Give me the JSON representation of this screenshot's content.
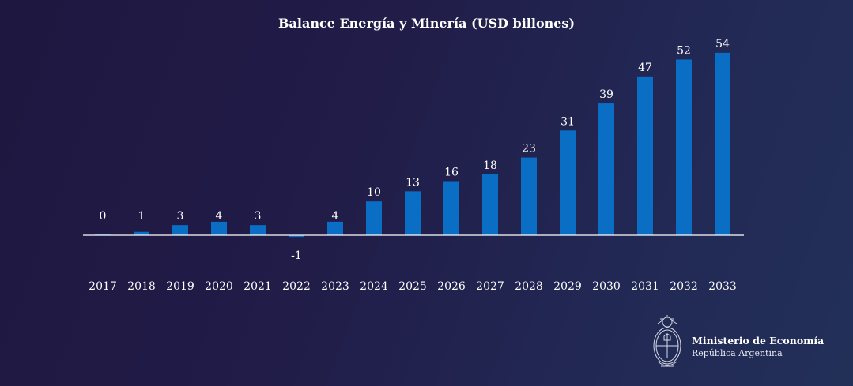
{
  "chart_data": {
    "type": "bar",
    "title": "Balance Energía y Minería (USD billones)",
    "xlabel": "",
    "ylabel": "",
    "categories": [
      "2017",
      "2018",
      "2019",
      "2020",
      "2021",
      "2022",
      "2023",
      "2024",
      "2025",
      "2026",
      "2027",
      "2028",
      "2029",
      "2030",
      "2031",
      "2032",
      "2033"
    ],
    "values": [
      0.3,
      1,
      3,
      4,
      3,
      -0.5,
      4,
      10,
      13,
      16,
      18,
      23,
      31,
      39,
      47,
      52,
      54
    ],
    "labels": [
      "0",
      "1",
      "3",
      "4",
      "3",
      "-1",
      "4",
      "10",
      "13",
      "16",
      "18",
      "23",
      "31",
      "39",
      "47",
      "52",
      "54"
    ],
    "ylim": [
      -1,
      55
    ],
    "grid": false,
    "legend": "none",
    "bar_color": "#0a6fc4",
    "axis_color": "#ffffff"
  },
  "footer": {
    "org_name": "Ministerio de Economía",
    "org_sub": "República Argentina",
    "logo_icon": "argentina-coat-of-arms-icon"
  }
}
